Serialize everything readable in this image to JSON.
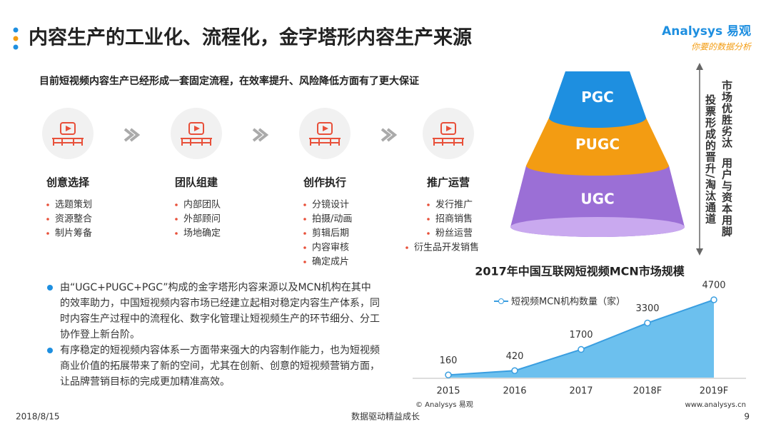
{
  "header": {
    "title": "内容生产的工业化、流程化，金字塔形内容生产来源",
    "logo": "Analysys 易观",
    "slogan": "你要的数据分析"
  },
  "subtitle": "目前短视频内容生产已经形成一套固定流程，在效率提升、风险降低方面有了更大保证",
  "steps": [
    {
      "label": "创意选择",
      "items": [
        "选题策划",
        "资源整合",
        "制片筹备"
      ]
    },
    {
      "label": "团队组建",
      "items": [
        "内部团队",
        "外部顾问",
        "场地确定"
      ]
    },
    {
      "label": "创作执行",
      "items": [
        "分镜设计",
        "拍摄/动画",
        "剪辑后期",
        "内容审核",
        "确定成片"
      ]
    },
    {
      "label": "推广运营",
      "items": [
        "发行推广",
        "招商销售",
        "粉丝运营",
        "衍生品开发销售"
      ]
    }
  ],
  "pyramid": {
    "levels": [
      "PGC",
      "PUGC",
      "UGC"
    ],
    "note_right": "市场优胜劣汰  用户与资本用脚",
    "note_left": "投票形成的晋升/淘汰通道"
  },
  "bullets": [
    "由“UGC+PUGC+PGC”构成的金字塔形内容来源以及MCN机构在其中的效率助力，中国短视频内容市场已经建立起相对稳定内容生产体系，同时内容生产过程中的流程化、数字化管理让短视频生产的环节细分、分工协作登上新台阶。",
    "有序稳定的短视频内容体系一方面带来强大的内容制作能力，也为短视频商业价值的拓展带来了新的空间，尤其在创新、创意的短视频营销方面，让品牌营销目标的完成更加精准高效。"
  ],
  "chart_data": {
    "type": "area",
    "title": "2017年中国互联网短视频MCN市场规模",
    "categories": [
      "2015",
      "2016",
      "2017",
      "2018F",
      "2019F"
    ],
    "series": [
      {
        "name": "短视频MCN机构数量（家）",
        "color": "#6cc0ee",
        "values": [
          160,
          420,
          1700,
          3300,
          4700
        ]
      }
    ],
    "ylim": [
      0,
      5000
    ]
  },
  "source": "© Analysys 易观",
  "website": "www.analysys.cn",
  "footer": {
    "date": "2018/8/15",
    "slogan": "数据驱动精益成长",
    "page": "9"
  }
}
